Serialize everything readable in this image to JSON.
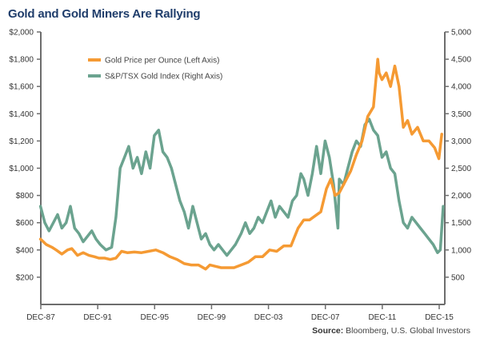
{
  "chart_data": {
    "type": "line",
    "title": "Gold and Gold Miners Are Rallying",
    "source_label": "Source:",
    "source_text": "Bloomberg, U.S. Global Investors",
    "xlabel": "",
    "x_ticks": [
      "DEC-87",
      "DEC-91",
      "DEC-95",
      "DEC-99",
      "DEC-03",
      "DEC-07",
      "DEC-11",
      "DEC-15"
    ],
    "x_range": [
      1987.92,
      2016.2
    ],
    "left_axis": {
      "label": "Gold Price per Ounce",
      "ylim": [
        0,
        2000
      ],
      "ticks": [
        "$200",
        "$400",
        "$600",
        "$800",
        "$1,000",
        "$1,200",
        "$1,400",
        "$1,600",
        "$1,800",
        "$2,000"
      ]
    },
    "right_axis": {
      "label": "S&P/TSX Gold Index",
      "ylim": [
        0,
        5000
      ],
      "ticks": [
        "500",
        "1,000",
        "1,500",
        "2,000",
        "2,500",
        "3,000",
        "3,500",
        "4,000",
        "4,500",
        "5,000"
      ]
    },
    "legend": {
      "placement": "top-left",
      "entries": [
        {
          "name": "Gold Price per Ounce (Left Axis)",
          "color": "#f59a33"
        },
        {
          "name": "S&P/TSX Gold Index (Right Axis)",
          "color": "#6ba38f"
        }
      ]
    },
    "series": [
      {
        "name": "Gold Price per Ounce (Left Axis)",
        "axis": "left",
        "color": "#f59a33",
        "x": [
          1987.9,
          1988.3,
          1988.7,
          1989.0,
          1989.4,
          1989.8,
          1990.1,
          1990.5,
          1990.9,
          1991.3,
          1991.7,
          1992.0,
          1992.4,
          1992.8,
          1993.2,
          1993.6,
          1994.0,
          1994.5,
          1995.0,
          1995.5,
          1996.0,
          1996.5,
          1997.0,
          1997.5,
          1998.0,
          1998.5,
          1999.0,
          1999.5,
          1999.8,
          2000.2,
          2000.6,
          2001.0,
          2001.5,
          2002.0,
          2002.5,
          2003.0,
          2003.5,
          2004.0,
          2004.5,
          2005.0,
          2005.5,
          2006.0,
          2006.4,
          2006.8,
          2007.2,
          2007.6,
          2008.0,
          2008.3,
          2008.6,
          2008.9,
          2009.3,
          2009.7,
          2010.1,
          2010.5,
          2010.9,
          2011.3,
          2011.6,
          2011.7,
          2011.9,
          2012.2,
          2012.5,
          2012.8,
          2013.1,
          2013.4,
          2013.7,
          2014.0,
          2014.4,
          2014.8,
          2015.2,
          2015.6,
          2015.9,
          2016.1
        ],
        "y": [
          480,
          440,
          420,
          400,
          370,
          400,
          410,
          360,
          380,
          360,
          350,
          340,
          340,
          330,
          340,
          390,
          380,
          385,
          380,
          390,
          400,
          380,
          350,
          330,
          300,
          290,
          290,
          260,
          290,
          280,
          270,
          270,
          270,
          290,
          310,
          350,
          350,
          400,
          390,
          430,
          430,
          560,
          620,
          620,
          650,
          680,
          850,
          920,
          800,
          820,
          900,
          980,
          1100,
          1200,
          1380,
          1450,
          1800,
          1700,
          1650,
          1700,
          1600,
          1750,
          1600,
          1300,
          1350,
          1250,
          1300,
          1200,
          1200,
          1150,
          1070,
          1250
        ]
      },
      {
        "name": "S&P/TSX Gold Index (Right Axis)",
        "axis": "right",
        "color": "#6ba38f",
        "x": [
          1987.9,
          1988.2,
          1988.5,
          1988.8,
          1989.1,
          1989.4,
          1989.7,
          1990.0,
          1990.3,
          1990.6,
          1990.9,
          1991.2,
          1991.5,
          1991.8,
          1992.1,
          1992.5,
          1992.9,
          1993.2,
          1993.5,
          1993.8,
          1994.1,
          1994.4,
          1994.7,
          1995.0,
          1995.3,
          1995.6,
          1995.9,
          1996.2,
          1996.5,
          1996.8,
          1997.1,
          1997.4,
          1997.7,
          1998.0,
          1998.3,
          1998.6,
          1998.9,
          1999.2,
          1999.5,
          1999.8,
          2000.1,
          2000.4,
          2000.7,
          2001.0,
          2001.3,
          2001.6,
          2002.0,
          2002.3,
          2002.6,
          2002.9,
          2003.2,
          2003.5,
          2003.8,
          2004.1,
          2004.4,
          2004.7,
          2005.0,
          2005.3,
          2005.6,
          2005.9,
          2006.2,
          2006.4,
          2006.7,
          2007.0,
          2007.3,
          2007.6,
          2007.9,
          2008.2,
          2008.5,
          2008.8,
          2008.9,
          2009.2,
          2009.5,
          2009.8,
          2010.1,
          2010.4,
          2010.7,
          2011.0,
          2011.3,
          2011.6,
          2011.9,
          2012.2,
          2012.5,
          2012.8,
          2013.1,
          2013.4,
          2013.7,
          2014.0,
          2014.3,
          2014.6,
          2014.9,
          2015.2,
          2015.5,
          2015.8,
          2016.0,
          2016.2
        ],
        "y": [
          1800,
          1500,
          1350,
          1500,
          1650,
          1400,
          1500,
          1800,
          1400,
          1300,
          1150,
          1250,
          1350,
          1200,
          1100,
          1000,
          1050,
          1600,
          2500,
          2700,
          2900,
          2500,
          2700,
          2400,
          2800,
          2500,
          3100,
          3200,
          2800,
          2700,
          2500,
          2200,
          1900,
          1700,
          1400,
          1800,
          1500,
          1200,
          1300,
          1100,
          1000,
          1100,
          1000,
          900,
          1000,
          1100,
          1300,
          1500,
          1300,
          1400,
          1600,
          1500,
          1700,
          1900,
          1600,
          1800,
          1700,
          1600,
          1900,
          2000,
          2400,
          2300,
          2000,
          2400,
          2900,
          2400,
          3000,
          2700,
          2200,
          1400,
          2300,
          2200,
          2500,
          2800,
          3000,
          2900,
          3300,
          3400,
          3200,
          3100,
          2700,
          2800,
          2500,
          2400,
          1900,
          1500,
          1400,
          1600,
          1500,
          1400,
          1300,
          1200,
          1100,
          950,
          1000,
          1800
        ]
      }
    ]
  }
}
